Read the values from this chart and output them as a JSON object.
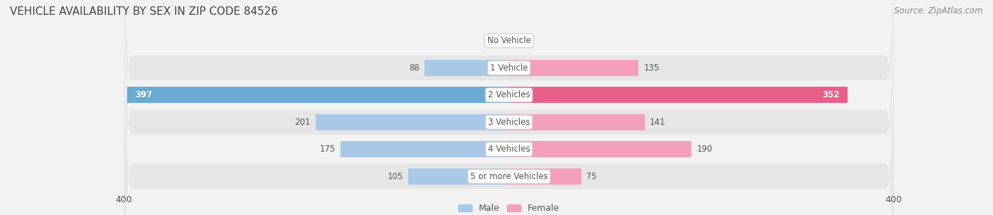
{
  "title": "VEHICLE AVAILABILITY BY SEX IN ZIP CODE 84526",
  "source": "Source: ZipAtlas.com",
  "categories": [
    "No Vehicle",
    "1 Vehicle",
    "2 Vehicles",
    "3 Vehicles",
    "4 Vehicles",
    "5 or more Vehicles"
  ],
  "male_values": [
    0,
    88,
    397,
    201,
    175,
    105
  ],
  "female_values": [
    0,
    135,
    352,
    141,
    190,
    75
  ],
  "male_color_normal": "#a8c8e8",
  "male_color_large": "#6aaad4",
  "female_color_normal": "#f4a0bb",
  "female_color_large": "#e8608a",
  "row_color_light": "#f2f2f2",
  "row_color_dark": "#e6e6e6",
  "fig_bg_color": "#f2f2f2",
  "axis_max": 400,
  "label_fontsize": 9,
  "title_fontsize": 11,
  "source_fontsize": 8.5,
  "legend_fontsize": 9,
  "value_fontsize": 8.5,
  "category_fontsize": 8.5,
  "bar_height": 0.6,
  "figsize": [
    14.06,
    3.05
  ],
  "dpi": 100
}
